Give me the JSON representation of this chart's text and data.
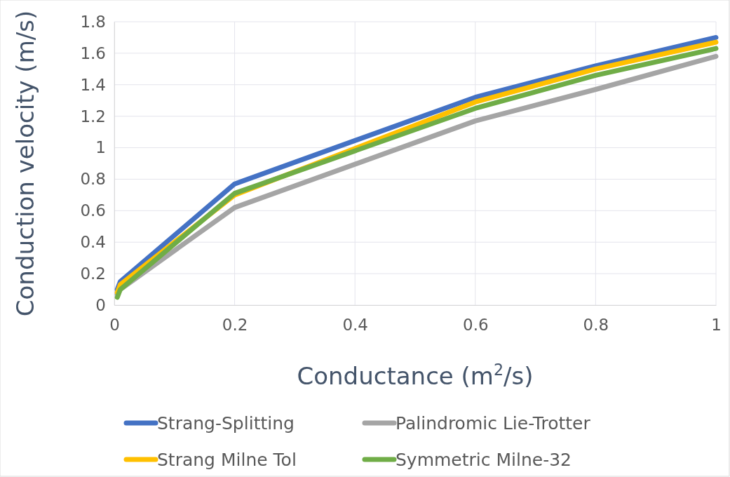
{
  "chart_data": {
    "type": "line",
    "xlabel": "Conductance (m$^{2}$/s)",
    "ylabel": "Conduction velocity (m/s)",
    "x": [
      0.005,
      0.01,
      0.2,
      0.6,
      0.8,
      1
    ],
    "series": [
      {
        "name": "Strang-Splitting",
        "color": "#4472c4",
        "values": [
          0.1,
          0.15,
          0.77,
          1.32,
          1.52,
          1.7
        ]
      },
      {
        "name": "Palindromic Lie-Trotter",
        "color": "#a5a5a5",
        "values": [
          0.07,
          0.1,
          0.62,
          1.17,
          1.37,
          1.58
        ]
      },
      {
        "name": "Strang Milne Tol",
        "color": "#ffc000",
        "values": [
          0.08,
          0.13,
          0.7,
          1.29,
          1.5,
          1.67
        ]
      },
      {
        "name": "Symmetric Milne-32",
        "color": "#70ad47",
        "values": [
          0.05,
          0.1,
          0.71,
          1.25,
          1.46,
          1.63
        ]
      }
    ],
    "xlim": [
      0,
      1
    ],
    "xticks": [
      0,
      0.2,
      0.4,
      0.6,
      0.8,
      1
    ],
    "ylim": [
      0,
      1.8
    ],
    "yticks": [
      0,
      0.2,
      0.4,
      0.6,
      0.8,
      1,
      1.2,
      1.4,
      1.6,
      1.8
    ],
    "grid": true,
    "legend": "bottom",
    "marker": "none",
    "line_style": "solid"
  }
}
